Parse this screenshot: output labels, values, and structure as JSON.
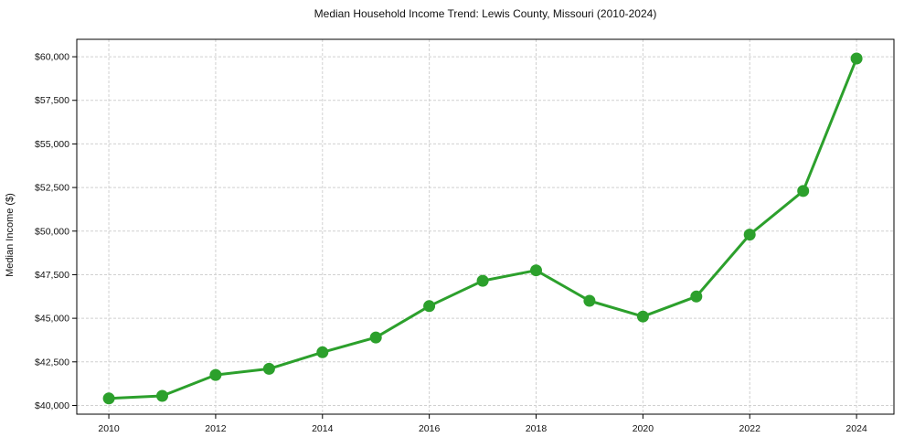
{
  "chart_data": {
    "type": "line",
    "title": "Median Household Income Trend: Lewis County, Missouri (2010-2024)",
    "xlabel": "",
    "ylabel": "Median Income ($)",
    "series": [
      {
        "name": "Median Household Income",
        "x": [
          2010,
          2011,
          2012,
          2013,
          2014,
          2015,
          2016,
          2017,
          2018,
          2019,
          2020,
          2021,
          2022,
          2023,
          2024
        ],
        "values": [
          40400,
          40550,
          41750,
          42100,
          43050,
          43900,
          45700,
          47150,
          47750,
          46000,
          45100,
          46250,
          49800,
          52300,
          59900
        ]
      }
    ],
    "x_ticks": [
      2010,
      2012,
      2014,
      2016,
      2018,
      2020,
      2022,
      2024
    ],
    "x_tick_labels": [
      "2010",
      "2012",
      "2014",
      "2016",
      "2018",
      "2020",
      "2022",
      "2024"
    ],
    "y_ticks": [
      40000,
      42500,
      45000,
      47500,
      50000,
      52500,
      55000,
      57500,
      60000
    ],
    "y_tick_labels": [
      "$40,000",
      "$42,500",
      "$45,000",
      "$47,500",
      "$50,000",
      "$52,500",
      "$55,000",
      "$57,500",
      "$60,000"
    ],
    "xlim": [
      2009.4,
      2024.7
    ],
    "ylim": [
      39500,
      61000
    ],
    "grid": true,
    "grid_style": "dashed",
    "legend_position": "none",
    "colors": {
      "line": "#2ca02c",
      "marker": "#2ca02c",
      "grid": "#d0d0d0",
      "spine": "#000000",
      "background": "#ffffff"
    }
  }
}
